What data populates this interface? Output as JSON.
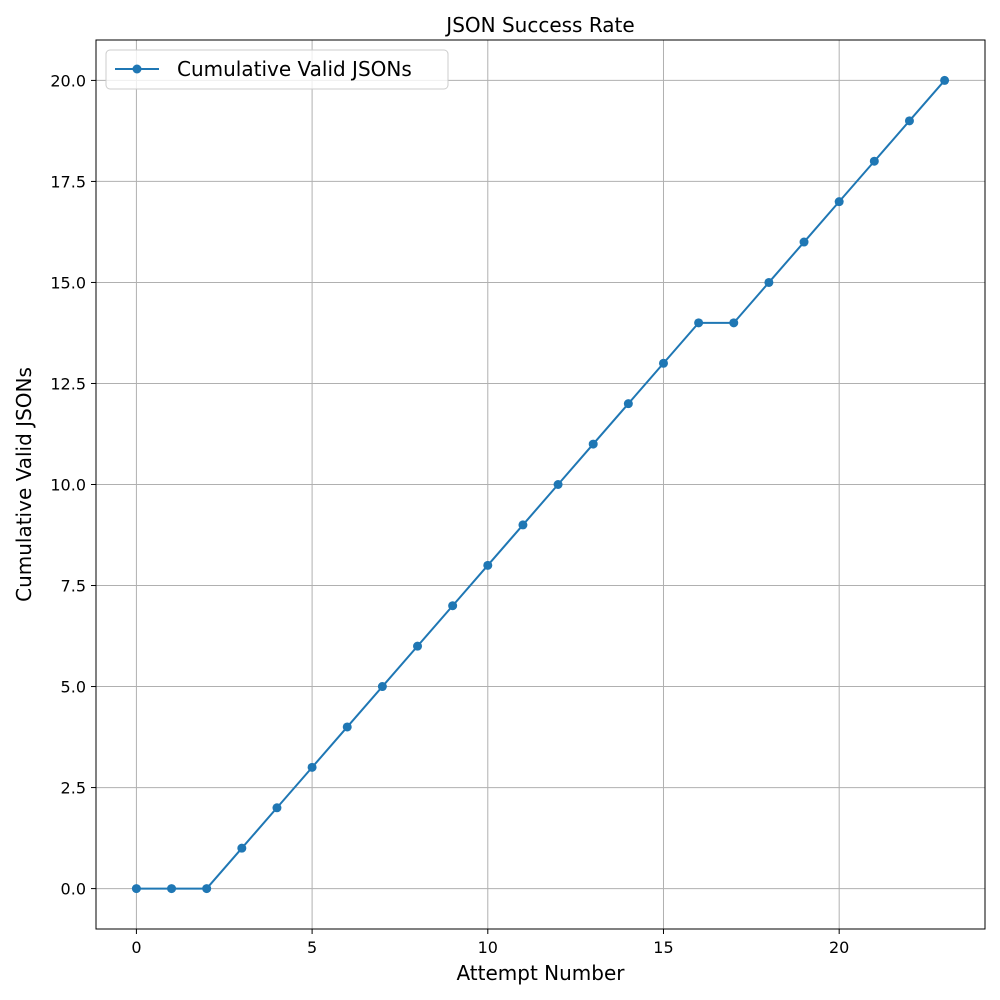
{
  "chart_data": {
    "type": "line",
    "title": "JSON Success Rate",
    "xlabel": "Attempt Number",
    "ylabel": "Cumulative Valid JSONs",
    "xlim": [
      -1.15,
      24.15
    ],
    "ylim": [
      -1.0,
      21.0
    ],
    "xticks": [
      0,
      5,
      10,
      15,
      20
    ],
    "xtick_labels": [
      "0",
      "5",
      "10",
      "15",
      "20"
    ],
    "yticks": [
      0,
      2.5,
      5,
      7.5,
      10,
      12.5,
      15,
      17.5,
      20
    ],
    "ytick_labels": [
      "0.0",
      "2.5",
      "5.0",
      "7.5",
      "10.0",
      "12.5",
      "15.0",
      "17.5",
      "20.0"
    ],
    "grid": true,
    "legend_position": "top-left",
    "series": [
      {
        "name": "Cumulative Valid JSONs",
        "color": "#1f77b4",
        "marker": "circle",
        "x": [
          0,
          1,
          2,
          3,
          4,
          5,
          6,
          7,
          8,
          9,
          10,
          11,
          12,
          13,
          14,
          15,
          16,
          17,
          18,
          19,
          20,
          21,
          22,
          23
        ],
        "y": [
          0,
          0,
          0,
          1,
          2,
          3,
          4,
          5,
          6,
          7,
          8,
          9,
          10,
          11,
          12,
          13,
          14,
          14,
          15,
          16,
          17,
          18,
          19,
          20
        ]
      }
    ]
  }
}
